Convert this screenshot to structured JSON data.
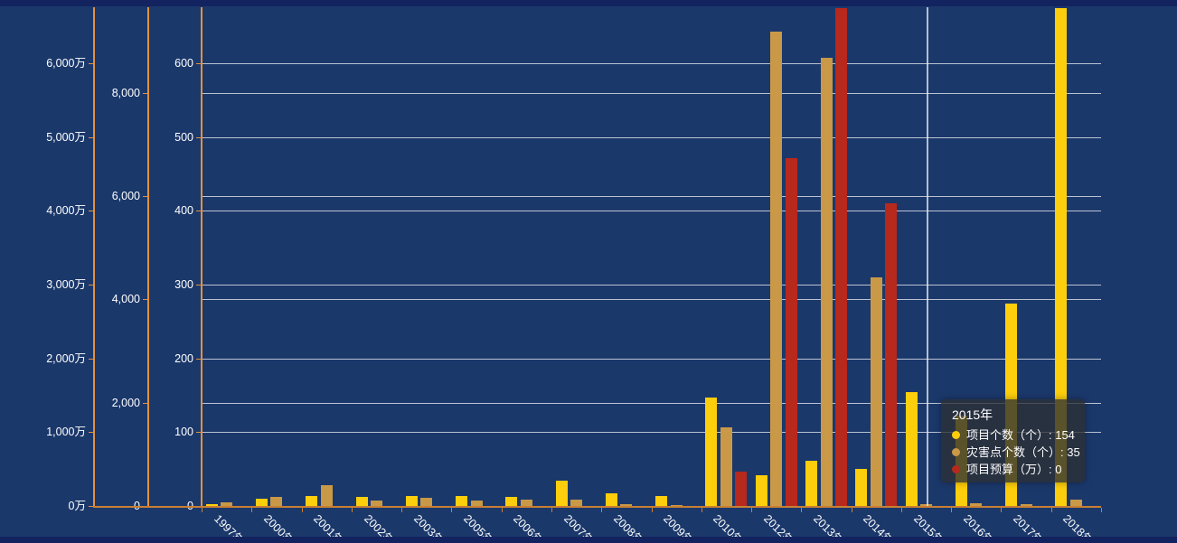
{
  "colors": {
    "background": "#1B386B",
    "frame_strip": "#132360",
    "grid": "#D7DBE4",
    "axis": "#E2913F",
    "x_axis_line": "#C97F33",
    "pointer": "#E8EBF0",
    "tooltip_bg": "rgba(44,47,53,0.78)",
    "series": [
      "#FCCE0C",
      "#C99947",
      "#B7281D"
    ]
  },
  "chart_data": {
    "type": "bar",
    "title": "",
    "legend": "none",
    "grid": true,
    "categories": [
      "1997年",
      "2000年",
      "2001年",
      "2002年",
      "2003年",
      "2005年",
      "2006年",
      "2007年",
      "2008年",
      "2009年",
      "2010年",
      "2012年",
      "2013年",
      "2014年",
      "2015年",
      "2016年",
      "2017年",
      "2018年"
    ],
    "series": [
      {
        "name": "项目个数（个）",
        "axis": "count",
        "color": "#FCCE0C",
        "values": [
          2,
          10,
          13,
          12,
          13,
          13,
          12,
          34,
          17,
          14,
          147,
          42,
          61,
          50,
          154,
          122,
          274,
          675
        ]
      },
      {
        "name": "灾害点个数（个）",
        "axis": "points",
        "color": "#C99947",
        "values": [
          70,
          175,
          400,
          110,
          150,
          110,
          130,
          120,
          35,
          25,
          1520,
          9190,
          8680,
          4430,
          35,
          60,
          30,
          120
        ]
      },
      {
        "name": "项目预算（万）",
        "axis": "budget",
        "color": "#B7281D",
        "values": [
          0,
          0,
          0,
          0,
          0,
          0,
          0,
          0,
          0,
          0,
          465,
          4710,
          6750,
          4100,
          0,
          0,
          0,
          0
        ]
      }
    ],
    "axes": {
      "budget": {
        "position": "outer-left",
        "ticks": [
          "0万",
          "1,000万",
          "2,000万",
          "3,000万",
          "4,000万",
          "5,000万",
          "6,000万"
        ],
        "tick_values": [
          0,
          1000,
          2000,
          3000,
          4000,
          5000,
          6000
        ],
        "range": [
          0,
          6760
        ]
      },
      "points": {
        "position": "middle-left",
        "ticks": [
          "0",
          "2,000",
          "4,000",
          "6,000",
          "8,000"
        ],
        "tick_values": [
          0,
          2000,
          4000,
          6000,
          8000
        ],
        "range": [
          0,
          9660
        ]
      },
      "count": {
        "position": "inner-left",
        "ticks": [
          "0",
          "100",
          "200",
          "300",
          "400",
          "500",
          "600"
        ],
        "tick_values": [
          0,
          100,
          200,
          300,
          400,
          500,
          600
        ],
        "range": [
          0,
          676
        ]
      }
    },
    "xlabel": "",
    "ylabel": ""
  },
  "tooltip": {
    "title": "2015年",
    "separator": ": ",
    "category_index": 14,
    "rows": [
      {
        "label": "项目个数（个）",
        "value": "154"
      },
      {
        "label": "灾害点个数（个）",
        "value": "35"
      },
      {
        "label": "项目预算（万）",
        "value": "0"
      }
    ]
  }
}
